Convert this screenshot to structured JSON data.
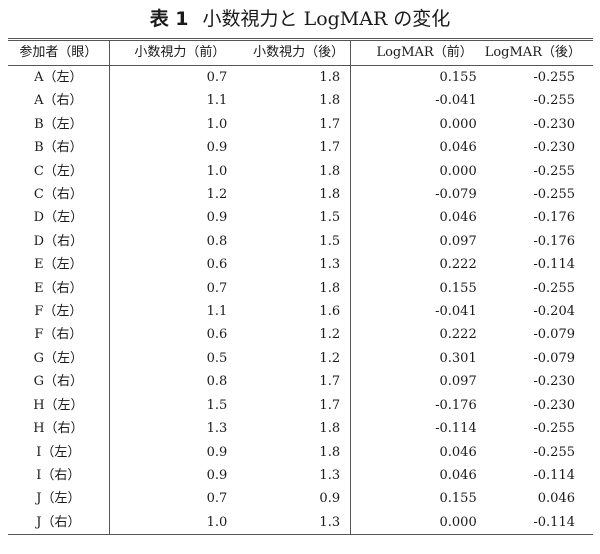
{
  "caption": {
    "label": "表 1",
    "title": "小数視力と LogMAR の変化"
  },
  "table": {
    "headers": [
      "参加者（眼）",
      "小数視力（前）",
      "小数視力（後）",
      "LogMAR（前）",
      "LogMAR（後）"
    ],
    "rows": [
      [
        "A（左）",
        "0.7",
        "1.8",
        "0.155",
        "-0.255"
      ],
      [
        "A（右）",
        "1.1",
        "1.8",
        "-0.041",
        "-0.255"
      ],
      [
        "B（左）",
        "1.0",
        "1.7",
        "0.000",
        "-0.230"
      ],
      [
        "B（右）",
        "0.9",
        "1.7",
        "0.046",
        "-0.230"
      ],
      [
        "C（左）",
        "1.0",
        "1.8",
        "0.000",
        "-0.255"
      ],
      [
        "C（右）",
        "1.2",
        "1.8",
        "-0.079",
        "-0.255"
      ],
      [
        "D（左）",
        "0.9",
        "1.5",
        "0.046",
        "-0.176"
      ],
      [
        "D（右）",
        "0.8",
        "1.5",
        "0.097",
        "-0.176"
      ],
      [
        "E（左）",
        "0.6",
        "1.3",
        "0.222",
        "-0.114"
      ],
      [
        "E（右）",
        "0.7",
        "1.8",
        "0.155",
        "-0.255"
      ],
      [
        "F（左）",
        "1.1",
        "1.6",
        "-0.041",
        "-0.204"
      ],
      [
        "F（右）",
        "0.6",
        "1.2",
        "0.222",
        "-0.079"
      ],
      [
        "G（左）",
        "0.5",
        "1.2",
        "0.301",
        "-0.079"
      ],
      [
        "G（右）",
        "0.8",
        "1.7",
        "0.097",
        "-0.230"
      ],
      [
        "H（左）",
        "1.5",
        "1.7",
        "-0.176",
        "-0.230"
      ],
      [
        "H（右）",
        "1.3",
        "1.8",
        "-0.114",
        "-0.255"
      ],
      [
        "I（左）",
        "0.9",
        "1.8",
        "0.046",
        "-0.255"
      ],
      [
        "I（右）",
        "0.9",
        "1.3",
        "0.046",
        "-0.114"
      ],
      [
        "J（左）",
        "0.7",
        "0.9",
        "0.155",
        "0.046"
      ],
      [
        "J（右）",
        "1.0",
        "1.3",
        "0.000",
        "-0.114"
      ]
    ]
  }
}
